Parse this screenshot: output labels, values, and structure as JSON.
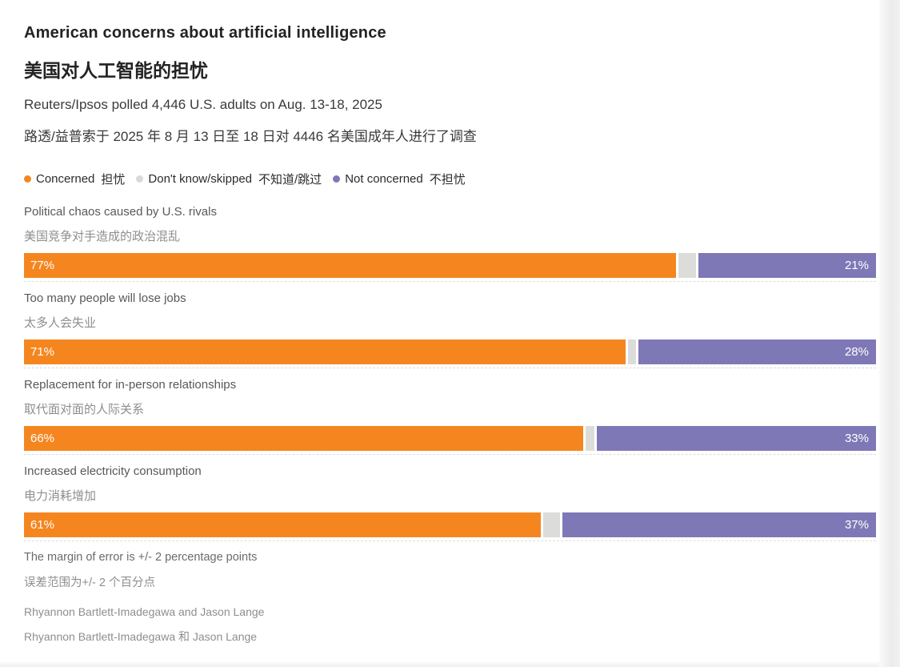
{
  "header": {
    "title_en": "American concerns about artificial intelligence",
    "title_zh": "美国对人工智能的担忧",
    "subtitle_en": "Reuters/Ipsos polled 4,446 U.S. adults on Aug. 13-18, 2025",
    "subtitle_zh": "路透/益普索于 2025 年 8 月 13 日至 18 日对 4446 名美国成年人进行了调查"
  },
  "legend": {
    "items": [
      {
        "label_en": "Concerned",
        "label_zh": "担忧",
        "color": "#f5861f"
      },
      {
        "label_en": "Don't know/skipped",
        "label_zh": "不知道/跳过",
        "color": "#d9d9d7"
      },
      {
        "label_en": "Not concerned",
        "label_zh": "不担忧",
        "color": "#7f78b6"
      }
    ]
  },
  "chart_data": {
    "type": "bar",
    "orientation": "horizontal_stacked",
    "title": "American concerns about artificial intelligence",
    "title_zh": "美国对人工智能的担忧",
    "subtitle": "Reuters/Ipsos polled 4,446 U.S. adults on Aug. 13-18, 2025",
    "categories": [
      "Political chaos caused by U.S. rivals",
      "Too many people will lose jobs",
      "Replacement for in-person relationships",
      "Increased electricity consumption"
    ],
    "categories_zh": [
      "美国竞争对手造成的政治混乱",
      "太多人会失业",
      "取代面对面的人际关系",
      "电力消耗增加"
    ],
    "series": [
      {
        "name": "Concerned",
        "name_zh": "担忧",
        "color": "#f5861f",
        "values": [
          77,
          71,
          66,
          61
        ]
      },
      {
        "name": "Don't know/skipped",
        "name_zh": "不知道/跳过",
        "color": "#dcdcda",
        "values": [
          2,
          1,
          1,
          2
        ]
      },
      {
        "name": "Not concerned",
        "name_zh": "不担忧",
        "color": "#7f78b6",
        "values": [
          21,
          28,
          33,
          37
        ]
      }
    ],
    "xlim": [
      0,
      100
    ],
    "legend_position": "top",
    "grid": false,
    "value_labels": "Concerned and Not concerned segments labeled inside bars"
  },
  "rows": [
    {
      "label_en": "Political chaos caused by U.S. rivals",
      "label_zh": "美国竞争对手造成的政治混乱",
      "concerned": 77,
      "dk": 2,
      "not_concerned": 21,
      "concerned_label": "77%",
      "not_label": "21%"
    },
    {
      "label_en": "Too many people will lose jobs",
      "label_zh": "太多人会失业",
      "concerned": 71,
      "dk": 1,
      "not_concerned": 28,
      "concerned_label": "71%",
      "not_label": "28%"
    },
    {
      "label_en": "Replacement for in-person relationships",
      "label_zh": "取代面对面的人际关系",
      "concerned": 66,
      "dk": 1,
      "not_concerned": 33,
      "concerned_label": "66%",
      "not_label": "33%"
    },
    {
      "label_en": "Increased electricity consumption",
      "label_zh": "电力消耗增加",
      "concerned": 61,
      "dk": 2,
      "not_concerned": 37,
      "concerned_label": "61%",
      "not_label": "37%"
    }
  ],
  "footer": {
    "moe_en": "The margin of error is +/- 2 percentage points",
    "moe_zh": "误差范围为+/- 2 个百分点",
    "byline_en": "Rhyannon Bartlett-Imadegawa and Jason Lange",
    "byline_zh": "Rhyannon Bartlett-Imadegawa 和 Jason Lange"
  }
}
